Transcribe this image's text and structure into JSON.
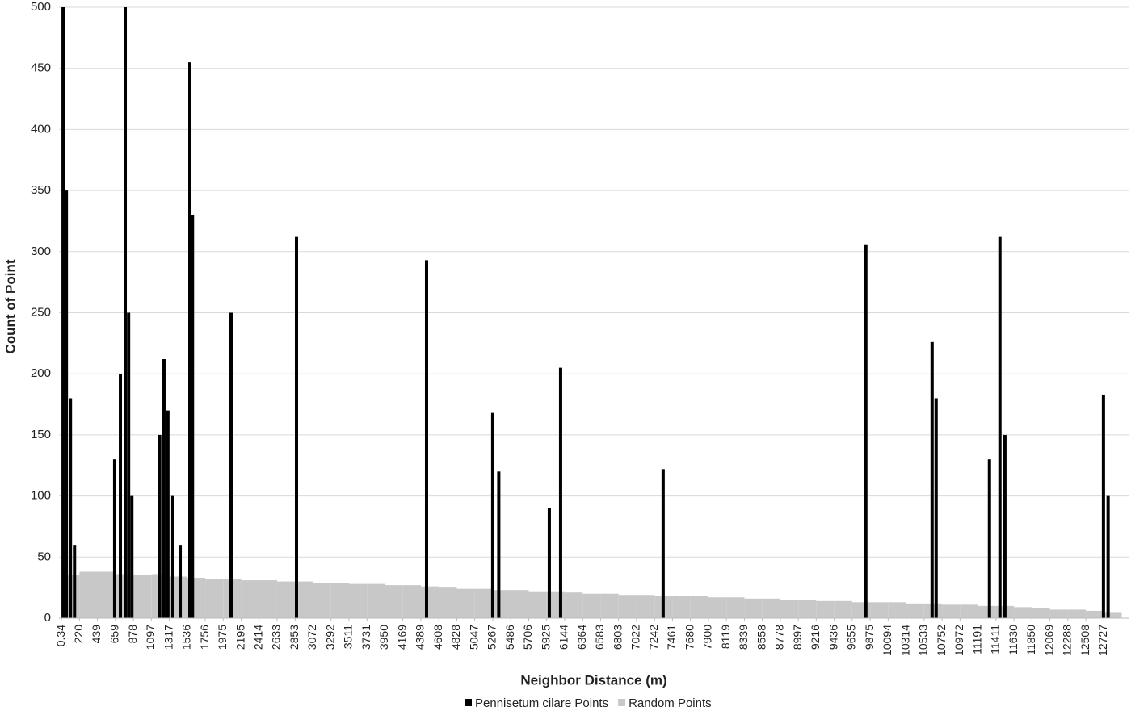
{
  "chart_data": {
    "type": "bar",
    "y_label": "Count of Point",
    "x_label": "Neighbor Distance (m)",
    "xlim": [
      -30,
      13030
    ],
    "ylim": [
      0,
      500
    ],
    "yticks": [
      0,
      50,
      100,
      150,
      200,
      250,
      300,
      350,
      400,
      450,
      500
    ],
    "xticks": [
      0.34,
      220,
      439,
      659,
      878,
      1097,
      1317,
      1536,
      1756,
      1975,
      2195,
      2414,
      2633,
      2853,
      3072,
      3292,
      3511,
      3731,
      3950,
      4169,
      4389,
      4608,
      4828,
      5047,
      5267,
      5486,
      5706,
      5925,
      6144,
      6364,
      6583,
      6803,
      7022,
      7242,
      7461,
      7680,
      7900,
      8119,
      8339,
      8558,
      8778,
      8997,
      9216,
      9436,
      9655,
      9875,
      10094,
      10314,
      10533,
      10752,
      10972,
      11191,
      11411,
      11630,
      11850,
      12069,
      12288,
      12508,
      12727
    ],
    "grid": true,
    "legend": "bottom",
    "series": [
      {
        "name": "Random Points",
        "color": "#c8c8c8",
        "x": [
          0.34,
          220,
          439,
          659,
          878,
          1097,
          1317,
          1536,
          1756,
          1975,
          2195,
          2414,
          2633,
          2853,
          3072,
          3292,
          3511,
          3731,
          3950,
          4169,
          4389,
          4608,
          4828,
          5047,
          5267,
          5486,
          5706,
          5925,
          6144,
          6364,
          6583,
          6803,
          7022,
          7242,
          7461,
          7680,
          7900,
          8119,
          8339,
          8558,
          8778,
          8997,
          9216,
          9436,
          9655,
          9875,
          10094,
          10314,
          10533,
          10752,
          10972,
          11191,
          11411,
          11630,
          11850,
          12069,
          12288,
          12508,
          12727
        ],
        "values": [
          35,
          38,
          38,
          36,
          35,
          36,
          34,
          33,
          32,
          32,
          31,
          31,
          30,
          30,
          29,
          29,
          28,
          28,
          27,
          27,
          26,
          25,
          24,
          24,
          23,
          23,
          22,
          22,
          21,
          20,
          20,
          19,
          19,
          18,
          18,
          18,
          17,
          17,
          16,
          16,
          15,
          15,
          14,
          14,
          13,
          13,
          13,
          12,
          12,
          11,
          11,
          10,
          10,
          9,
          8,
          7,
          7,
          6,
          5
        ]
      },
      {
        "name": "Pennisetum cilare Points",
        "color": "#000000",
        "x": [
          20,
          60,
          110,
          160,
          650,
          720,
          779,
          820,
          860,
          1200,
          1252,
          1300,
          1360,
          1450,
          1568,
          1600,
          2071,
          2870,
          4458,
          5266,
          5340,
          5957,
          6095,
          7347,
          9822,
          10631,
          10680,
          11331,
          11459,
          11520,
          12723,
          12780
        ],
        "values": [
          500,
          350,
          180,
          60,
          130,
          200,
          500,
          250,
          100,
          150,
          212,
          170,
          100,
          60,
          455,
          330,
          250,
          312,
          293,
          168,
          120,
          90,
          205,
          122,
          306,
          226,
          180,
          130,
          312,
          150,
          183,
          100
        ]
      }
    ]
  }
}
